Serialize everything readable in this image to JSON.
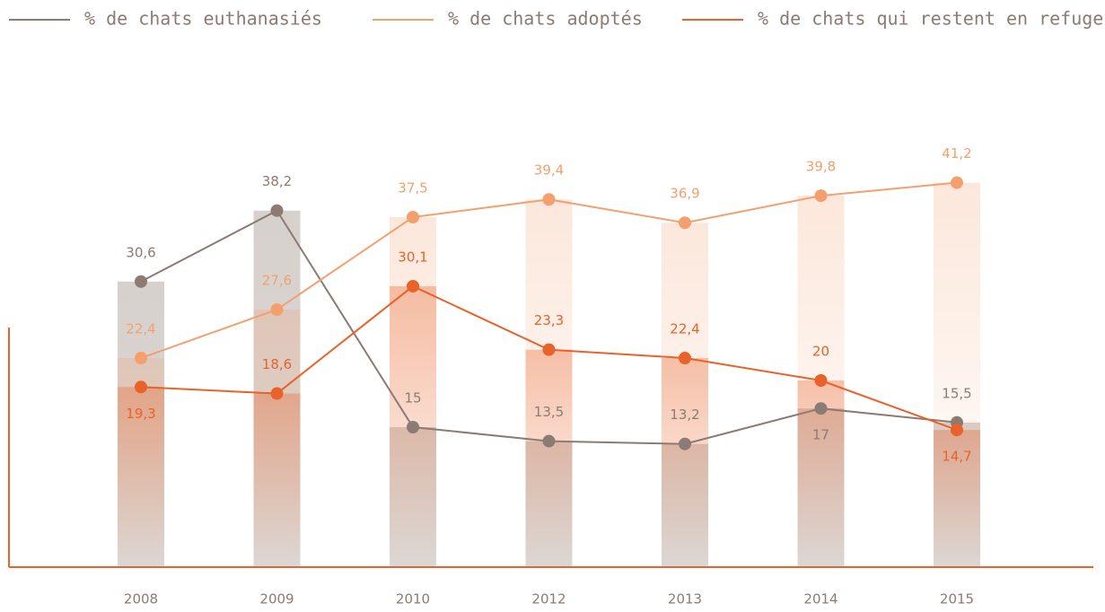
{
  "chart_data": {
    "type": "line",
    "categories": [
      "2008",
      "2009",
      "2010",
      "2012",
      "2013",
      "2014",
      "2015"
    ],
    "series": [
      {
        "name": "% de chats euthanasiés",
        "color": "#8c7b72",
        "values": [
          30.6,
          38.2,
          15,
          13.5,
          13.2,
          17,
          15.5
        ],
        "value_labels": [
          "30,6",
          "38,2",
          "15",
          "13,5",
          "13,2",
          "17",
          "15,5"
        ]
      },
      {
        "name": "% de chats adoptés",
        "color": "#f4a06e",
        "values": [
          22.4,
          27.6,
          37.5,
          39.4,
          36.9,
          39.8,
          41.2
        ],
        "value_labels": [
          "22,4",
          "27,6",
          "37,5",
          "39,4",
          "36,9",
          "39,8",
          "41,2"
        ]
      },
      {
        "name": "% de chats qui restent en refuge",
        "color": "#e8622a",
        "values": [
          19.3,
          18.6,
          30.1,
          23.3,
          22.4,
          20,
          14.7
        ],
        "value_labels": [
          "19,3",
          "18,6",
          "30,1",
          "23,3",
          "22,4",
          "20",
          "14,7"
        ]
      }
    ],
    "ylim": [
      0,
      45
    ]
  }
}
